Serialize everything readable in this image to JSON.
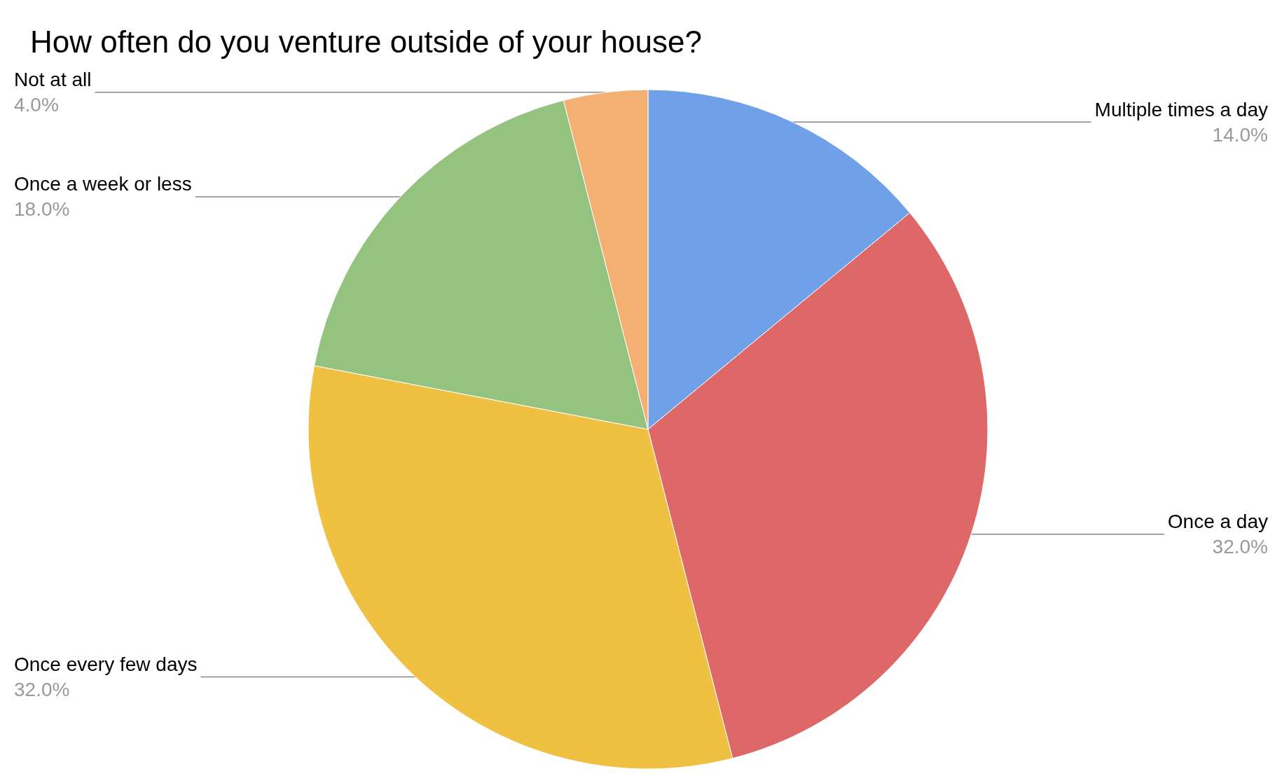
{
  "chart_data": {
    "type": "pie",
    "title": "How often do you venture outside of your house?",
    "categories": [
      "Multiple times a day",
      "Once a day",
      "Once every few days",
      "Once a week or less",
      "Not at all"
    ],
    "values": [
      14,
      32,
      32,
      18,
      4
    ],
    "value_labels": [
      "14.0%",
      "32.0%",
      "32.0%",
      "18.0%",
      "4.0%"
    ],
    "colors": [
      "#6fa0e8",
      "#de6868",
      "#f0c043",
      "#94c37f",
      "#f4b073"
    ],
    "legend": false
  }
}
